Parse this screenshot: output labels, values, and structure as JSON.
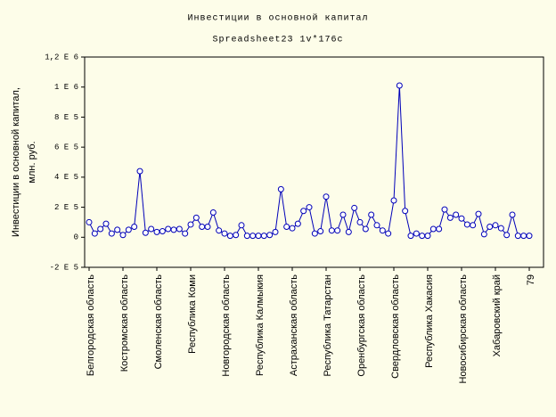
{
  "chart_data": {
    "type": "line",
    "title": "Инвестиции в основной капитал",
    "subtitle": "Spreadsheet23 1v*176c",
    "ylabel": [
      "Инвестиции в основной капитал,",
      "млн. руб."
    ],
    "color": "#0000b8",
    "marker_fill": "#ffffff",
    "ylim": [
      -200000,
      1200000
    ],
    "yticks": [
      {
        "value": -200000,
        "label": "-2 E 5"
      },
      0,
      {
        "value": 200000,
        "label": "2 E 5"
      },
      {
        "value": 400000,
        "label": "4 E 5"
      },
      {
        "value": 600000,
        "label": "6 E 5"
      },
      {
        "value": 800000,
        "label": "8 E 5"
      },
      {
        "value": 1000000,
        "label": "1 E 6"
      },
      {
        "value": 1200000,
        "label": "1,2 E 6"
      }
    ],
    "categories": [
      "Белгородская область",
      null,
      null,
      null,
      null,
      null,
      "Костромская область",
      null,
      null,
      null,
      null,
      null,
      "Смоленская область",
      null,
      null,
      null,
      null,
      null,
      "Республика Коми",
      null,
      null,
      null,
      null,
      null,
      "Новгородская область",
      null,
      null,
      null,
      null,
      null,
      "Республика Калмыкия",
      null,
      null,
      null,
      null,
      null,
      "Астраханская область",
      null,
      null,
      null,
      null,
      null,
      "Республика Татарстан",
      null,
      null,
      null,
      null,
      null,
      "Оренбургская область",
      null,
      null,
      null,
      null,
      null,
      "Свердловская область",
      null,
      null,
      null,
      null,
      null,
      "Республика Хакасия",
      null,
      null,
      null,
      null,
      null,
      "Новосибирская область",
      null,
      null,
      null,
      null,
      null,
      "Хабаровский край",
      null,
      null,
      null,
      null,
      null,
      "79"
    ],
    "values": [
      100000,
      25000,
      55000,
      90000,
      25000,
      50000,
      15000,
      50000,
      70000,
      440000,
      30000,
      55000,
      35000,
      40000,
      55000,
      50000,
      55000,
      25000,
      85000,
      130000,
      70000,
      70000,
      165000,
      45000,
      25000,
      10000,
      15000,
      80000,
      10000,
      10000,
      10000,
      10000,
      15000,
      35000,
      320000,
      70000,
      60000,
      90000,
      175000,
      200000,
      25000,
      40000,
      270000,
      45000,
      45000,
      150000,
      35000,
      195000,
      100000,
      55000,
      150000,
      80000,
      45000,
      25000,
      245000,
      1010000,
      175000,
      10000,
      25000,
      10000,
      10000,
      55000,
      55000,
      185000,
      130000,
      150000,
      125000,
      85000,
      80000,
      155000,
      20000,
      70000,
      80000,
      60000,
      15000,
      150000,
      10000,
      10000,
      10000
    ]
  }
}
